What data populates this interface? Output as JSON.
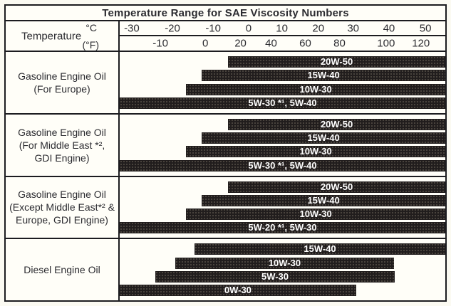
{
  "header": {
    "row_label": "Temperature",
    "celsius_unit": "°C",
    "fahrenheit_unit": "(°F)"
  },
  "colors": {
    "ink": "#1c1c20",
    "text": "#2b2b30",
    "bar_fill": "#211d1d",
    "bar_text": "#ffffff",
    "background": "#fffef8"
  },
  "chart_data": {
    "type": "bar",
    "variant": "horizontal-temperature-range",
    "title": "Temperature Range for SAE Viscosity Numbers",
    "legend_position": "none",
    "grid": false,
    "axis": {
      "celsius": {
        "label": "°C",
        "range": [
          -30,
          50
        ],
        "ticks": [
          {
            "label": "-30",
            "value": -30,
            "pct": 3.7
          },
          {
            "label": "-20",
            "value": -20,
            "pct": 16.2
          },
          {
            "label": "-10",
            "value": -10,
            "pct": 28.7
          },
          {
            "label": "0",
            "value": 0,
            "pct": 39.6
          },
          {
            "label": "10",
            "value": 10,
            "pct": 49.8
          },
          {
            "label": "20",
            "value": 20,
            "pct": 61.0
          },
          {
            "label": "30",
            "value": 30,
            "pct": 71.7
          },
          {
            "label": "40",
            "value": 40,
            "pct": 82.7
          },
          {
            "label": "50",
            "value": 50,
            "pct": 93.9
          }
        ]
      },
      "fahrenheit": {
        "label": "(°F)",
        "range": [
          -22,
          122
        ],
        "ticks": [
          {
            "label": "-10",
            "value": -10,
            "pct": 12.5
          },
          {
            "label": "0",
            "value": 0,
            "pct": 26.3
          },
          {
            "label": "20",
            "value": 20,
            "pct": 37.1
          },
          {
            "label": "40",
            "value": 40,
            "pct": 46.5
          },
          {
            "label": "60",
            "value": 60,
            "pct": 57.0
          },
          {
            "label": "80",
            "value": 80,
            "pct": 67.5
          },
          {
            "label": "100",
            "value": 100,
            "pct": 81.8
          },
          {
            "label": "120",
            "value": 120,
            "pct": 92.5
          }
        ]
      }
    },
    "groups": [
      {
        "label_lines": [
          "Gasoline Engine Oil",
          "(For Europe)"
        ],
        "bars": [
          {
            "label": "20W-50",
            "start_pct": 33.3,
            "end_pct": 100,
            "range_c": [
              -4,
              null
            ]
          },
          {
            "label": "15W-40",
            "start_pct": 25.2,
            "end_pct": 100,
            "range_c": [
              -11,
              null
            ]
          },
          {
            "label": "10W-30",
            "start_pct": 20.4,
            "end_pct": 100,
            "range_c": [
              -15,
              null
            ]
          },
          {
            "label": "5W-30 *¹, 5W-40",
            "start_pct": 0,
            "end_pct": 100,
            "range_c": [
              null,
              null
            ]
          }
        ]
      },
      {
        "label_lines": [
          "Gasoline Engine Oil",
          "(For Middle East *²,",
          "GDI Engine)"
        ],
        "bars": [
          {
            "label": "20W-50",
            "start_pct": 33.3,
            "end_pct": 100,
            "range_c": [
              -4,
              null
            ]
          },
          {
            "label": "15W-40",
            "start_pct": 25.2,
            "end_pct": 100,
            "range_c": [
              -11,
              null
            ]
          },
          {
            "label": "10W-30",
            "start_pct": 20.4,
            "end_pct": 100,
            "range_c": [
              -15,
              null
            ]
          },
          {
            "label": "5W-30 *¹, 5W-40",
            "start_pct": 0,
            "end_pct": 100,
            "range_c": [
              null,
              null
            ]
          }
        ]
      },
      {
        "label_lines": [
          "Gasoline Engine Oil",
          "(Except Middle East*² &",
          "Europe, GDI Engine)"
        ],
        "bars": [
          {
            "label": "20W-50",
            "start_pct": 33.3,
            "end_pct": 100,
            "range_c": [
              -4,
              null
            ]
          },
          {
            "label": "15W-40",
            "start_pct": 25.2,
            "end_pct": 100,
            "range_c": [
              -11,
              null
            ]
          },
          {
            "label": "10W-30",
            "start_pct": 20.4,
            "end_pct": 100,
            "range_c": [
              -15,
              null
            ]
          },
          {
            "label": "5W-20 *¹, 5W-30",
            "start_pct": 0,
            "end_pct": 100,
            "range_c": [
              null,
              null
            ]
          }
        ]
      },
      {
        "label_lines": [
          "Diesel Engine Oil"
        ],
        "bars": [
          {
            "label": "15W-40",
            "start_pct": 23.0,
            "end_pct": 100,
            "range_c": [
              -13,
              null
            ]
          },
          {
            "label": "10W-30",
            "start_pct": 17.1,
            "end_pct": 84.2,
            "range_c": [
              -18,
              41
            ]
          },
          {
            "label": "5W-30",
            "start_pct": 11.0,
            "end_pct": 84.4,
            "range_c": [
              -24,
              41
            ]
          },
          {
            "label": "0W-30",
            "start_pct": 0,
            "end_pct": 72.6,
            "range_c": [
              null,
              30
            ]
          }
        ]
      }
    ]
  }
}
